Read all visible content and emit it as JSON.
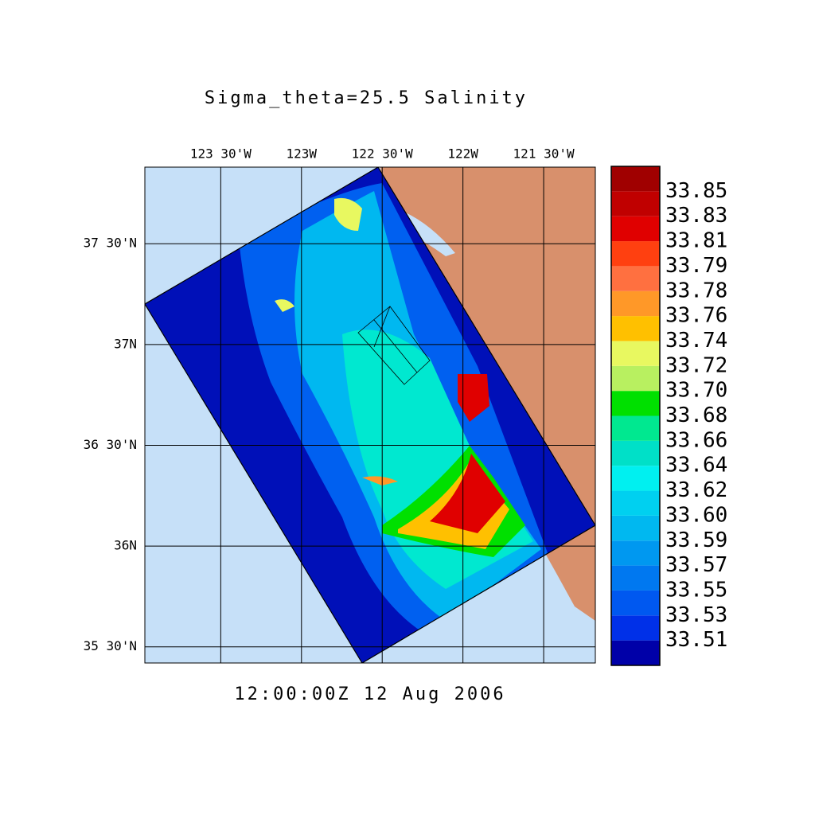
{
  "chart_data": {
    "type": "map",
    "title": "Sigma_theta=25.5 Salinity",
    "timestamp": "12:00:00Z  12 Aug 2006",
    "xlim": [
      -123.97,
      -121.18
    ],
    "ylim": [
      35.42,
      37.88
    ],
    "xticks": [
      {
        "value": -123.5,
        "label": "123 30'W"
      },
      {
        "value": -123,
        "label": "123W"
      },
      {
        "value": -122.5,
        "label": "122 30'W"
      },
      {
        "value": -122,
        "label": "122W"
      },
      {
        "value": -121.5,
        "label": "121 30'W"
      }
    ],
    "yticks": [
      {
        "value": 35.5,
        "label": "35 30'N"
      },
      {
        "value": 36,
        "label": "36N"
      },
      {
        "value": 36.5,
        "label": "36 30'N"
      },
      {
        "value": 37,
        "label": "37N"
      },
      {
        "value": 37.5,
        "label": "37 30'N"
      }
    ],
    "grid": true,
    "colorbar": {
      "levels": [
        33.51,
        33.53,
        33.55,
        33.57,
        33.59,
        {
          "value": 33.6,
          "label": "33.60"
        },
        33.62,
        33.64,
        33.66,
        33.68,
        {
          "value": 33.7,
          "label": "33.70"
        },
        33.72,
        33.74,
        33.76,
        33.78,
        33.79,
        33.81,
        33.83,
        33.85
      ],
      "colors": [
        "#0000a8",
        "#0030e8",
        "#0058f0",
        "#0078f0",
        "#0098f0",
        "#00b8f0",
        "#00d0f0",
        "#00f0f0",
        "#00e0c8",
        "#00e890",
        "#00e000",
        "#b8f060",
        "#e8f860",
        "#ffc000",
        "#ff9828",
        "#ff7040",
        "#ff4010",
        "#e00000",
        "#c00000",
        "#a00000"
      ]
    }
  }
}
